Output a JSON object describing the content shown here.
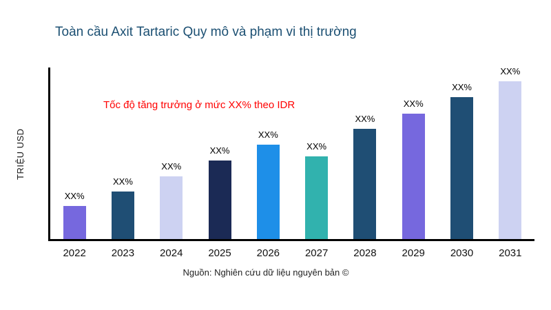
{
  "page": {
    "title": "Toàn cầu Axit Tartaric Quy mô và phạm vi thị trường",
    "source": "Nguồn: Nghiên cứu dữ liệu nguyên bản ©"
  },
  "chart_data": {
    "type": "bar",
    "title": "Toàn cầu Axit Tartaric Quy mô và phạm vi thị trường",
    "xlabel": "",
    "ylabel": "TRIỆU USD",
    "annotation": "Tốc độ tăng trưởng ở mức XX% theo IDR",
    "annotation_color": "#FF0000",
    "categories": [
      "2022",
      "2023",
      "2024",
      "2025",
      "2026",
      "2027",
      "2028",
      "2029",
      "2030",
      "2031"
    ],
    "values": [
      48,
      69,
      91,
      114,
      138,
      120,
      161,
      183,
      207,
      230
    ],
    "bar_labels": [
      "XX%",
      "XX%",
      "XX%",
      "XX%",
      "XX%",
      "XX%",
      "XX%",
      "XX%",
      "XX%",
      "XX%"
    ],
    "bar_colors": [
      "#7668DE",
      "#1F4E74",
      "#CDD2F2",
      "#1B2A55",
      "#1E8FE8",
      "#31B2AE",
      "#1F4E74",
      "#7668DE",
      "#1F4E74",
      "#CDD2F2"
    ],
    "ylim": [
      0,
      250
    ],
    "grid": false,
    "legend": false,
    "title_color": "#1B4F72"
  }
}
